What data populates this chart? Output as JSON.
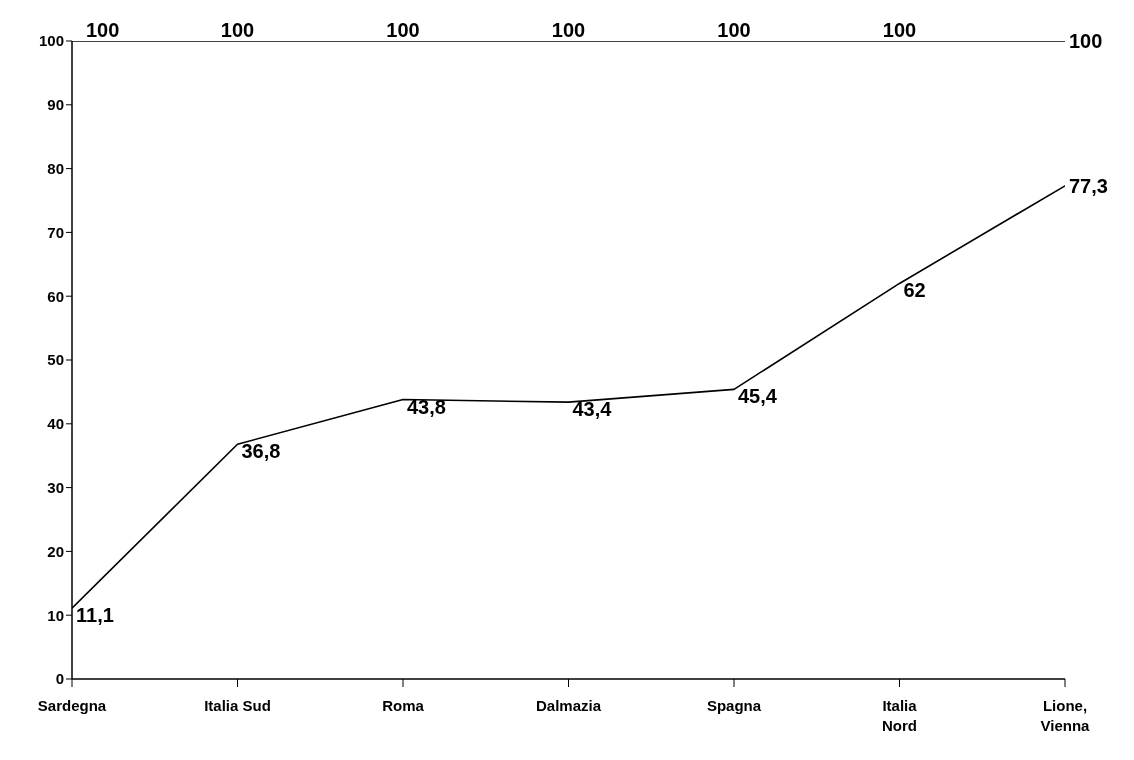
{
  "chart_data": {
    "type": "line",
    "categories": [
      "Sardegna",
      "Italia Sud",
      "Roma",
      "Dalmazia",
      "Spagna",
      "Italia Nord",
      "Lione, Vienna"
    ],
    "series": [
      {
        "color": "#000000",
        "values": [
          100,
          100,
          100,
          100,
          100,
          100,
          100
        ],
        "value_labels": [
          "100",
          "100",
          "100",
          "100",
          "100",
          "100",
          "100"
        ]
      },
      {
        "color": "#000000",
        "values": [
          11.1,
          36.8,
          43.8,
          43.4,
          45.4,
          62,
          77.3
        ],
        "value_labels": [
          "11,1",
          "36,8",
          "43,8",
          "43,4",
          "45,4",
          "62",
          "77,3"
        ]
      }
    ],
    "ylim": [
      0,
      100
    ],
    "yticks": [
      0,
      10,
      20,
      30,
      40,
      50,
      60,
      70,
      80,
      90,
      100
    ],
    "grid": false,
    "legend": false,
    "marker": "none",
    "line_style": "solid"
  }
}
